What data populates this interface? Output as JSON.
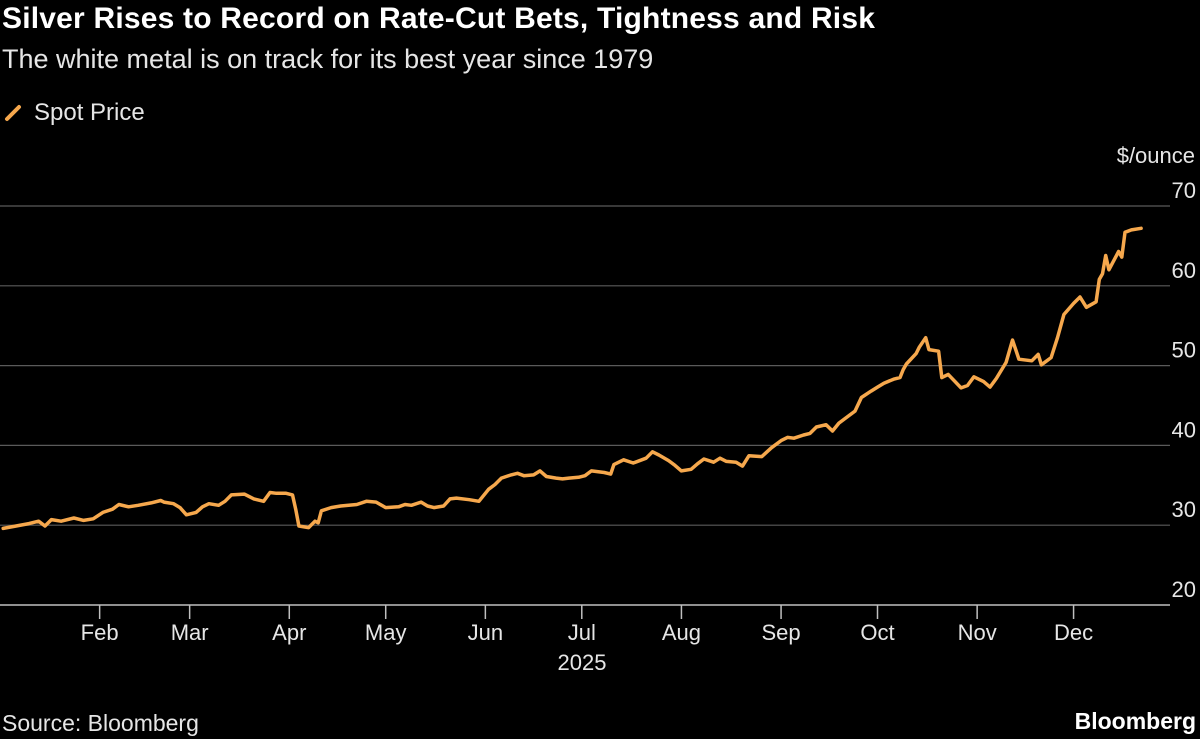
{
  "chart_data": {
    "type": "line",
    "title": "Silver Rises to Record on Rate-Cut Bets, Tightness and Risk",
    "subtitle": "The white metal is on track for its best year since 1979",
    "ylabel": "$/ounce",
    "ylim": [
      20,
      70
    ],
    "yticks": [
      20,
      30,
      40,
      50,
      60,
      70
    ],
    "xlim": [
      "2025-01-01",
      "2025-12-31"
    ],
    "year_label": "2025",
    "month_ticks": [
      {
        "label": "Feb",
        "date": "2025-02-01"
      },
      {
        "label": "Mar",
        "date": "2025-03-01"
      },
      {
        "label": "Apr",
        "date": "2025-04-01"
      },
      {
        "label": "May",
        "date": "2025-05-01"
      },
      {
        "label": "Jun",
        "date": "2025-06-01"
      },
      {
        "label": "Jul",
        "date": "2025-07-01"
      },
      {
        "label": "Aug",
        "date": "2025-08-01"
      },
      {
        "label": "Sep",
        "date": "2025-09-01"
      },
      {
        "label": "Oct",
        "date": "2025-10-01"
      },
      {
        "label": "Nov",
        "date": "2025-11-01"
      },
      {
        "label": "Dec",
        "date": "2025-12-01"
      }
    ],
    "grid": true,
    "legend_position": "top-left",
    "series": [
      {
        "name": "Spot Price",
        "color": "#f6a84d",
        "points": [
          [
            "2025-01-02",
            29.6
          ],
          [
            "2025-01-06",
            29.9
          ],
          [
            "2025-01-10",
            30.2
          ],
          [
            "2025-01-13",
            30.5
          ],
          [
            "2025-01-15",
            29.9
          ],
          [
            "2025-01-17",
            30.7
          ],
          [
            "2025-01-20",
            30.5
          ],
          [
            "2025-01-24",
            30.9
          ],
          [
            "2025-01-27",
            30.6
          ],
          [
            "2025-01-30",
            30.8
          ],
          [
            "2025-02-02",
            31.6
          ],
          [
            "2025-02-05",
            32.0
          ],
          [
            "2025-02-07",
            32.6
          ],
          [
            "2025-02-10",
            32.3
          ],
          [
            "2025-02-13",
            32.5
          ],
          [
            "2025-02-17",
            32.8
          ],
          [
            "2025-02-20",
            33.1
          ],
          [
            "2025-02-21",
            32.9
          ],
          [
            "2025-02-24",
            32.7
          ],
          [
            "2025-02-26",
            32.2
          ],
          [
            "2025-02-28",
            31.3
          ],
          [
            "2025-03-03",
            31.6
          ],
          [
            "2025-03-05",
            32.3
          ],
          [
            "2025-03-07",
            32.7
          ],
          [
            "2025-03-10",
            32.5
          ],
          [
            "2025-03-12",
            33.0
          ],
          [
            "2025-03-14",
            33.8
          ],
          [
            "2025-03-18",
            33.9
          ],
          [
            "2025-03-21",
            33.3
          ],
          [
            "2025-03-24",
            33.0
          ],
          [
            "2025-03-26",
            34.1
          ],
          [
            "2025-03-28",
            34.0
          ],
          [
            "2025-03-31",
            34.0
          ],
          [
            "2025-04-02",
            33.8
          ],
          [
            "2025-04-03",
            32.0
          ],
          [
            "2025-04-04",
            29.9
          ],
          [
            "2025-04-07",
            29.7
          ],
          [
            "2025-04-09",
            30.5
          ],
          [
            "2025-04-10",
            30.3
          ],
          [
            "2025-04-11",
            31.8
          ],
          [
            "2025-04-14",
            32.2
          ],
          [
            "2025-04-17",
            32.4
          ],
          [
            "2025-04-22",
            32.6
          ],
          [
            "2025-04-25",
            33.0
          ],
          [
            "2025-04-28",
            32.9
          ],
          [
            "2025-05-01",
            32.2
          ],
          [
            "2025-05-05",
            32.3
          ],
          [
            "2025-05-07",
            32.6
          ],
          [
            "2025-05-09",
            32.5
          ],
          [
            "2025-05-12",
            32.9
          ],
          [
            "2025-05-14",
            32.4
          ],
          [
            "2025-05-16",
            32.2
          ],
          [
            "2025-05-19",
            32.4
          ],
          [
            "2025-05-21",
            33.3
          ],
          [
            "2025-05-23",
            33.4
          ],
          [
            "2025-05-27",
            33.2
          ],
          [
            "2025-05-30",
            33.0
          ],
          [
            "2025-06-02",
            34.5
          ],
          [
            "2025-06-04",
            35.1
          ],
          [
            "2025-06-06",
            35.9
          ],
          [
            "2025-06-09",
            36.3
          ],
          [
            "2025-06-11",
            36.5
          ],
          [
            "2025-06-13",
            36.2
          ],
          [
            "2025-06-16",
            36.3
          ],
          [
            "2025-06-18",
            36.8
          ],
          [
            "2025-06-20",
            36.1
          ],
          [
            "2025-06-23",
            35.9
          ],
          [
            "2025-06-25",
            35.8
          ],
          [
            "2025-06-27",
            35.9
          ],
          [
            "2025-06-30",
            36.0
          ],
          [
            "2025-07-02",
            36.2
          ],
          [
            "2025-07-04",
            36.8
          ],
          [
            "2025-07-08",
            36.6
          ],
          [
            "2025-07-10",
            36.4
          ],
          [
            "2025-07-11",
            37.6
          ],
          [
            "2025-07-14",
            38.2
          ],
          [
            "2025-07-17",
            37.8
          ],
          [
            "2025-07-21",
            38.4
          ],
          [
            "2025-07-23",
            39.2
          ],
          [
            "2025-07-25",
            38.8
          ],
          [
            "2025-07-28",
            38.1
          ],
          [
            "2025-07-30",
            37.5
          ],
          [
            "2025-08-01",
            36.8
          ],
          [
            "2025-08-04",
            37.0
          ],
          [
            "2025-08-06",
            37.7
          ],
          [
            "2025-08-08",
            38.3
          ],
          [
            "2025-08-11",
            37.9
          ],
          [
            "2025-08-13",
            38.4
          ],
          [
            "2025-08-15",
            38.0
          ],
          [
            "2025-08-18",
            37.9
          ],
          [
            "2025-08-20",
            37.4
          ],
          [
            "2025-08-22",
            38.7
          ],
          [
            "2025-08-26",
            38.6
          ],
          [
            "2025-08-29",
            39.7
          ],
          [
            "2025-09-01",
            40.6
          ],
          [
            "2025-09-03",
            41.0
          ],
          [
            "2025-09-05",
            40.9
          ],
          [
            "2025-09-08",
            41.3
          ],
          [
            "2025-09-10",
            41.5
          ],
          [
            "2025-09-12",
            42.3
          ],
          [
            "2025-09-15",
            42.6
          ],
          [
            "2025-09-17",
            41.8
          ],
          [
            "2025-09-19",
            42.8
          ],
          [
            "2025-09-22",
            43.7
          ],
          [
            "2025-09-24",
            44.3
          ],
          [
            "2025-09-26",
            46.0
          ],
          [
            "2025-09-29",
            46.8
          ],
          [
            "2025-10-01",
            47.3
          ],
          [
            "2025-10-03",
            47.8
          ],
          [
            "2025-10-06",
            48.3
          ],
          [
            "2025-10-08",
            48.5
          ],
          [
            "2025-10-09",
            49.5
          ],
          [
            "2025-10-10",
            50.2
          ],
          [
            "2025-10-13",
            51.5
          ],
          [
            "2025-10-14",
            52.3
          ],
          [
            "2025-10-16",
            53.5
          ],
          [
            "2025-10-17",
            52.0
          ],
          [
            "2025-10-20",
            51.8
          ],
          [
            "2025-10-21",
            48.5
          ],
          [
            "2025-10-23",
            48.9
          ],
          [
            "2025-10-27",
            47.2
          ],
          [
            "2025-10-29",
            47.5
          ],
          [
            "2025-10-31",
            48.6
          ],
          [
            "2025-11-03",
            48.0
          ],
          [
            "2025-11-05",
            47.3
          ],
          [
            "2025-11-07",
            48.4
          ],
          [
            "2025-11-10",
            50.4
          ],
          [
            "2025-11-12",
            53.2
          ],
          [
            "2025-11-13",
            52.0
          ],
          [
            "2025-11-14",
            50.8
          ],
          [
            "2025-11-18",
            50.6
          ],
          [
            "2025-11-20",
            51.4
          ],
          [
            "2025-11-21",
            50.1
          ],
          [
            "2025-11-24",
            51.0
          ],
          [
            "2025-11-26",
            53.5
          ],
          [
            "2025-11-28",
            56.4
          ],
          [
            "2025-12-01",
            57.8
          ],
          [
            "2025-12-03",
            58.6
          ],
          [
            "2025-12-05",
            57.3
          ],
          [
            "2025-12-08",
            58.0
          ],
          [
            "2025-12-09",
            60.8
          ],
          [
            "2025-12-10",
            61.5
          ],
          [
            "2025-12-11",
            63.8
          ],
          [
            "2025-12-12",
            62.0
          ],
          [
            "2025-12-15",
            64.3
          ],
          [
            "2025-12-16",
            63.6
          ],
          [
            "2025-12-17",
            66.7
          ],
          [
            "2025-12-19",
            67.0
          ],
          [
            "2025-12-22",
            67.2
          ]
        ]
      }
    ]
  },
  "footer": {
    "source": "Source: Bloomberg",
    "brand": "Bloomberg"
  }
}
